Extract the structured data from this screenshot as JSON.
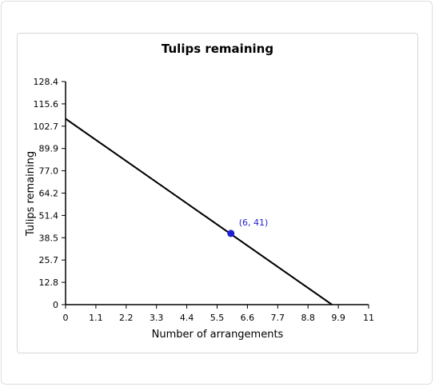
{
  "chart_data": {
    "type": "line",
    "title": "Tulips remaining",
    "xlabel": "Number of arrangements",
    "ylabel": "Tulips remaining",
    "xlim": [
      0,
      11
    ],
    "ylim": [
      0,
      128.4
    ],
    "x_ticks": [
      "0",
      "1.1",
      "2.2",
      "3.3",
      "4.4",
      "5.5",
      "6.6",
      "7.7",
      "8.8",
      "9.9",
      "11"
    ],
    "y_ticks": [
      "0",
      "12.8",
      "25.7",
      "38.5",
      "51.4",
      "64.2",
      "77.0",
      "89.9",
      "102.7",
      "115.6",
      "128.4"
    ],
    "series": [
      {
        "x": [
          0,
          9.67
        ],
        "y": [
          107,
          0
        ],
        "color": "#000000"
      }
    ],
    "highlight_point": {
      "x": 6,
      "y": 41,
      "label": "(6, 41)",
      "color": "#1f1fd1"
    },
    "grid": false,
    "legend": "none"
  }
}
